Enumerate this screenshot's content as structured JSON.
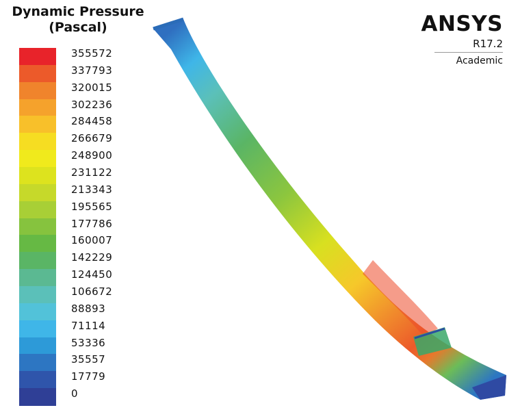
{
  "legend": {
    "title_line1": "Dynamic Pressure",
    "title_line2": "(Pascal)",
    "ticks": [
      "355572",
      "337793",
      "320015",
      "302236",
      "284458",
      "266679",
      "248900",
      "231122",
      "213343",
      "195565",
      "177786",
      "160007",
      "142229",
      "124450",
      "106672",
      "88893",
      "71114",
      "53336",
      "35557",
      "17779",
      "0"
    ],
    "colors": [
      "#e8232a",
      "#ec5a2a",
      "#f0842c",
      "#f5a22c",
      "#f8c02a",
      "#f6dd22",
      "#f0ea1c",
      "#dde31e",
      "#c6d92a",
      "#a8cf36",
      "#86c33e",
      "#66b944",
      "#5ab565",
      "#5bb992",
      "#5bc0b9",
      "#52c2d9",
      "#3fb6e8",
      "#2d9ad8",
      "#2d76c2",
      "#2f55ab",
      "#2f3f96"
    ]
  },
  "brand": {
    "name": "ANSYS",
    "version": "R17.2",
    "edition": "Academic"
  }
}
